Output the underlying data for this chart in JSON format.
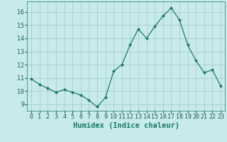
{
  "x": [
    0,
    1,
    2,
    3,
    4,
    5,
    6,
    7,
    8,
    9,
    10,
    11,
    12,
    13,
    14,
    15,
    16,
    17,
    18,
    19,
    20,
    21,
    22,
    23
  ],
  "y": [
    10.9,
    10.5,
    10.2,
    9.9,
    10.1,
    9.9,
    9.7,
    9.3,
    8.8,
    9.5,
    11.5,
    12.0,
    13.5,
    14.7,
    14.0,
    14.9,
    15.7,
    16.3,
    15.4,
    13.5,
    12.3,
    11.4,
    11.6,
    10.4
  ],
  "line_color": "#1a7a6e",
  "marker": "D",
  "marker_size": 2.0,
  "bg_color": "#c8eaea",
  "grid_color": "#a8cece",
  "xlabel": "Humidex (Indice chaleur)",
  "ylim": [
    8.5,
    16.8
  ],
  "xlim": [
    -0.5,
    23.5
  ],
  "yticks": [
    9,
    10,
    11,
    12,
    13,
    14,
    15,
    16
  ],
  "xticks": [
    0,
    1,
    2,
    3,
    4,
    5,
    6,
    7,
    8,
    9,
    10,
    11,
    12,
    13,
    14,
    15,
    16,
    17,
    18,
    19,
    20,
    21,
    22,
    23
  ],
  "tick_fontsize": 6,
  "xlabel_fontsize": 7.5
}
